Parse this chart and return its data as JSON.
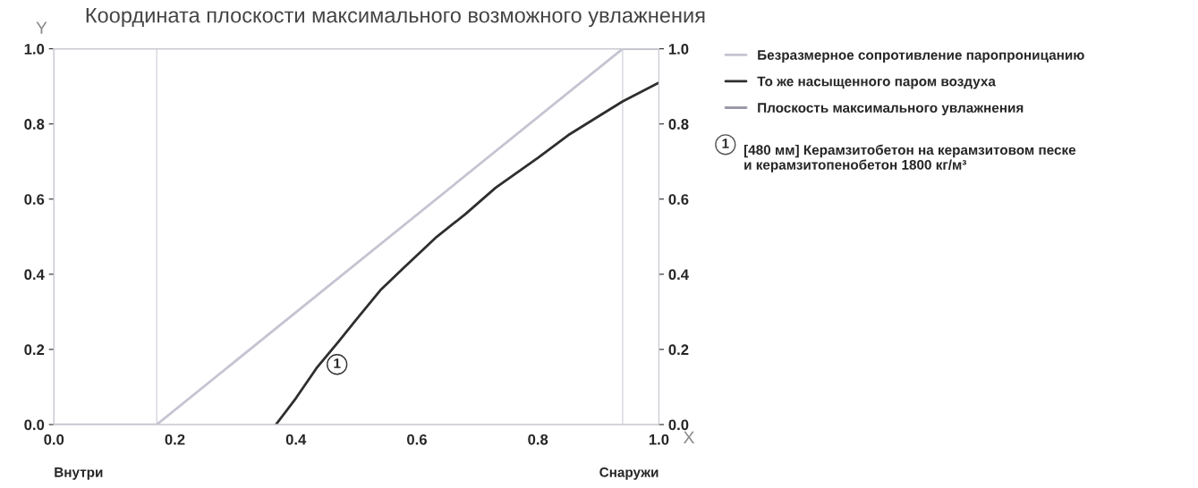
{
  "chart_data": {
    "type": "line",
    "title": "Координата плоскости максимального возможного увлажнения",
    "xlabel": "X",
    "ylabel": "Y",
    "xlim": [
      0,
      1
    ],
    "xticks": [
      {
        "value": 0,
        "label": "0.0"
      },
      {
        "value": 0.2,
        "label": "0.2"
      },
      {
        "value": 0.4,
        "label": "0.4"
      },
      {
        "value": 0.6,
        "label": "0.6"
      },
      {
        "value": 0.8,
        "label": "0.8"
      },
      {
        "value": 1,
        "label": "1.0"
      }
    ],
    "ylim": [
      0,
      1
    ],
    "yticks": [
      {
        "value": 0,
        "label": "0.0"
      },
      {
        "value": 0.2,
        "label": "0.2"
      },
      {
        "value": 0.4,
        "label": "0.4"
      },
      {
        "value": 0.6,
        "label": "0.6"
      },
      {
        "value": 0.8,
        "label": "0.8"
      },
      {
        "value": 1,
        "label": "1.0"
      }
    ],
    "y2lim": [
      0,
      1
    ],
    "y2ticks": [
      {
        "value": 0,
        "label": "0.0"
      },
      {
        "value": 0.2,
        "label": "0.2"
      },
      {
        "value": 0.4,
        "label": "0.4"
      },
      {
        "value": 0.6,
        "label": "0.6"
      },
      {
        "value": 0.8,
        "label": "0.8"
      },
      {
        "value": 1,
        "label": "1.0"
      }
    ],
    "series": [
      {
        "name": "Безразмерное сопротивление паропроницанию",
        "color": "#c4c4d2",
        "x": [
          0,
          0.17,
          0.94,
          1.0
        ],
        "values": [
          0,
          0,
          1.0,
          1.0
        ]
      },
      {
        "name": "То же насыщенного паром воздуха",
        "color": "#2e2e2e",
        "x": [
          0.367,
          0.4,
          0.434,
          0.47,
          0.5,
          0.541,
          0.58,
          0.633,
          0.68,
          0.73,
          0.8,
          0.85,
          0.9,
          0.94,
          1.0
        ],
        "values": [
          0,
          0.07,
          0.15,
          0.22,
          0.28,
          0.36,
          0.42,
          0.5,
          0.56,
          0.63,
          0.71,
          0.77,
          0.82,
          0.86,
          0.91
        ]
      },
      {
        "name": "Плоскость максимального увлажнения",
        "color": "#9a9aaa"
      }
    ],
    "ref_lines": [
      {
        "axis": "x",
        "value": 0.17,
        "color": "#d6d6e0"
      },
      {
        "axis": "x",
        "value": 0.94,
        "color": "#d6d6e0"
      }
    ],
    "annotations": [
      {
        "text": "1",
        "x": 0.468,
        "y": 0.16
      },
      "1",
      "[480 мм] Керамзитобетон на керамзитовом песке\nи керамзитопенобетон 1800 кг/м³",
      "Внутри",
      "Снаружи"
    ],
    "legend": "right",
    "grid": false
  }
}
